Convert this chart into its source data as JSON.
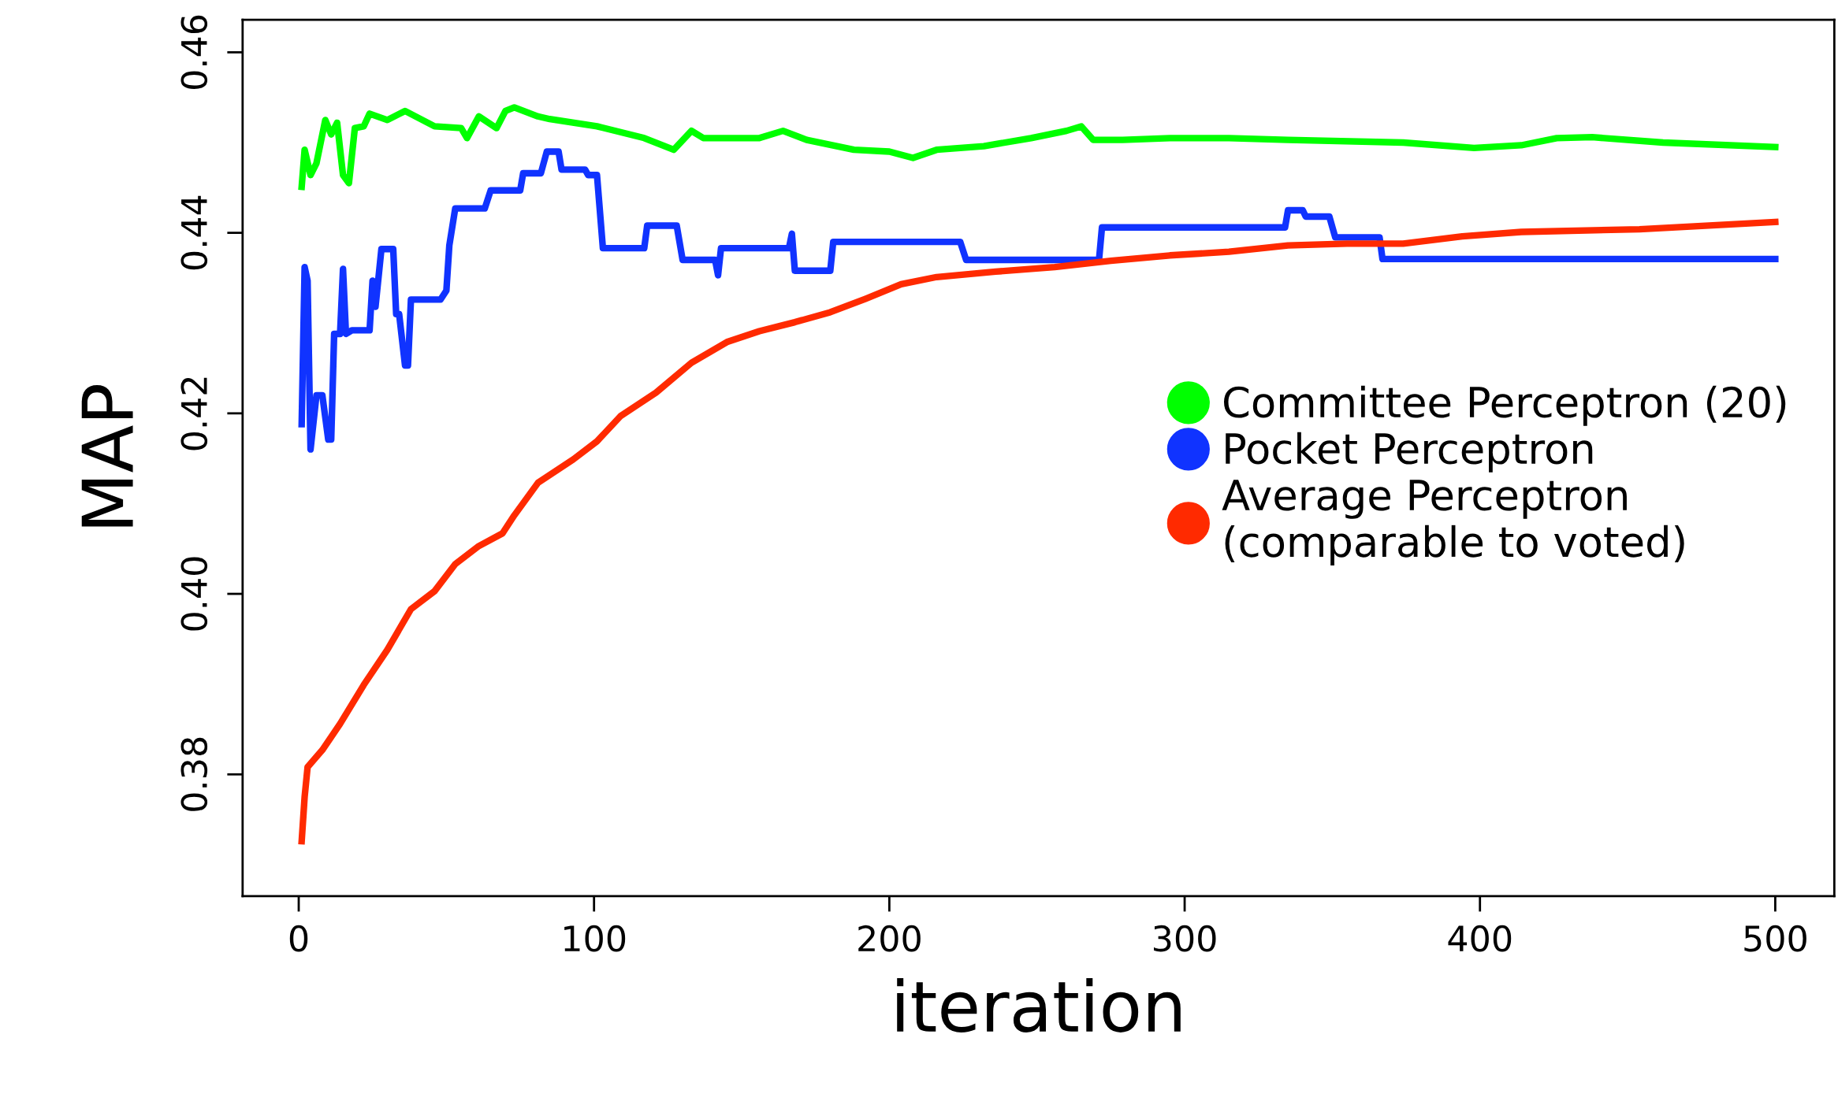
{
  "chart_data": {
    "type": "line",
    "xlabel": "iteration",
    "ylabel": "MAP",
    "xlim": [
      -19,
      520
    ],
    "ylim": [
      0.3665,
      0.4636
    ],
    "xticks": [
      0,
      100,
      200,
      300,
      400,
      500
    ],
    "yticks": [
      {
        "value": 0.38,
        "label": "0.38"
      },
      {
        "value": 0.4,
        "label": "0.40"
      },
      {
        "value": 0.42,
        "label": "0.42"
      },
      {
        "value": 0.44,
        "label": "0.44"
      },
      {
        "value": 0.46,
        "label": "0.46"
      }
    ],
    "grid": false,
    "legend": "right",
    "marker": "none",
    "line_style": "solid",
    "series": [
      {
        "name": "Committee Perceptron (20)",
        "color": "#00ff00",
        "x": [
          1,
          2,
          4,
          6,
          9,
          11,
          13,
          15,
          17,
          19,
          22,
          24,
          30,
          36,
          46,
          55,
          57,
          61,
          67,
          70,
          73,
          81,
          85,
          101,
          117,
          127,
          133,
          137,
          145,
          156,
          164,
          172,
          188,
          200,
          208,
          216,
          232,
          248,
          260,
          265,
          269,
          279,
          295,
          315,
          335,
          374,
          398,
          414,
          426,
          438,
          462,
          500
        ],
        "values": [
          0.4451,
          0.4492,
          0.4464,
          0.4477,
          0.4525,
          0.4509,
          0.4522,
          0.4464,
          0.4455,
          0.4516,
          0.4518,
          0.4532,
          0.4525,
          0.4535,
          0.4518,
          0.4516,
          0.4505,
          0.4529,
          0.4516,
          0.4535,
          0.4539,
          0.4529,
          0.4526,
          0.4518,
          0.4505,
          0.4492,
          0.4513,
          0.4505,
          0.4505,
          0.4505,
          0.4513,
          0.4503,
          0.4492,
          0.449,
          0.4483,
          0.4492,
          0.4496,
          0.4505,
          0.4513,
          0.4518,
          0.4503,
          0.4503,
          0.4505,
          0.4505,
          0.4503,
          0.45,
          0.4494,
          0.4497,
          0.4505,
          0.4506,
          0.45,
          0.4495
        ]
      },
      {
        "name": "Pocket Perceptron",
        "color": "#1033ff",
        "x": [
          1,
          2,
          3,
          4,
          6,
          8,
          10,
          11,
          12,
          14,
          15,
          16,
          18,
          24,
          25,
          26,
          28,
          32,
          33,
          34,
          36,
          37,
          38,
          48,
          50,
          51,
          53,
          63,
          65,
          75,
          76,
          82,
          84,
          88,
          89,
          97,
          98,
          101,
          103,
          117,
          118,
          128,
          130,
          141,
          142,
          143,
          166,
          167,
          168,
          180,
          181,
          224,
          226,
          271,
          272,
          334,
          335,
          340,
          341,
          349,
          351,
          366,
          367,
          500
        ],
        "values": [
          0.4188,
          0.4362,
          0.4347,
          0.416,
          0.422,
          0.422,
          0.4171,
          0.4171,
          0.4288,
          0.4288,
          0.436,
          0.4288,
          0.4292,
          0.4292,
          0.4347,
          0.4318,
          0.4382,
          0.4382,
          0.431,
          0.431,
          0.4253,
          0.4253,
          0.4326,
          0.4326,
          0.4336,
          0.4386,
          0.4427,
          0.4427,
          0.4447,
          0.4447,
          0.4466,
          0.4466,
          0.449,
          0.449,
          0.447,
          0.447,
          0.4464,
          0.4464,
          0.4383,
          0.4383,
          0.4408,
          0.4408,
          0.437,
          0.437,
          0.4353,
          0.4383,
          0.4383,
          0.4399,
          0.4358,
          0.4358,
          0.439,
          0.439,
          0.437,
          0.437,
          0.4406,
          0.4406,
          0.4425,
          0.4425,
          0.4418,
          0.4418,
          0.4395,
          0.4395,
          0.4371,
          0.4371
        ]
      },
      {
        "name": "Average Perceptron\n(comparable to voted)",
        "color": "#ff2a00",
        "x": [
          1,
          2,
          3,
          8,
          14,
          22,
          30,
          38,
          46,
          53,
          61,
          69,
          73,
          81,
          93,
          101,
          109,
          121,
          133,
          145,
          156,
          168,
          180,
          192,
          204,
          216,
          236,
          256,
          275,
          295,
          315,
          335,
          355,
          374,
          394,
          414,
          454,
          500
        ],
        "values": [
          0.3726,
          0.3775,
          0.3808,
          0.3827,
          0.3856,
          0.3899,
          0.3938,
          0.3983,
          0.4003,
          0.4033,
          0.4053,
          0.4067,
          0.4087,
          0.4123,
          0.4149,
          0.4169,
          0.4197,
          0.4223,
          0.4256,
          0.4279,
          0.4291,
          0.4301,
          0.4312,
          0.4327,
          0.4343,
          0.4351,
          0.4357,
          0.4362,
          0.4369,
          0.4375,
          0.4379,
          0.4386,
          0.4388,
          0.4388,
          0.4396,
          0.4401,
          0.4404,
          0.4412
        ]
      }
    ]
  }
}
